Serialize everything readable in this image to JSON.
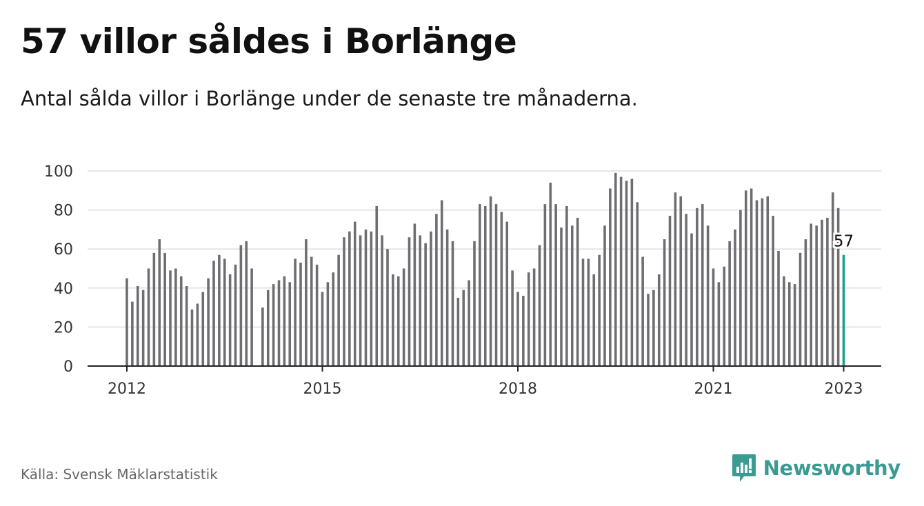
{
  "header": {
    "title": "57 villor såldes i Borlänge",
    "subtitle": "Antal sålda villor i Borlänge under de senaste tre månaderna."
  },
  "footer": {
    "source": "Källa: Svensk Mäklarstatistik",
    "brand": "Newsworthy"
  },
  "colors": {
    "bar": "#6e6e72",
    "highlight": "#1a9e8c",
    "grid": "#dddddd",
    "axis": "#222222",
    "brand": "#3a9b93"
  },
  "chart_data": {
    "type": "bar",
    "x_start": "2012-01",
    "interval": "month",
    "ylim": [
      0,
      100
    ],
    "yticks": [
      0,
      20,
      40,
      60,
      80,
      100
    ],
    "xticks": [
      {
        "label": "2012",
        "index": 0
      },
      {
        "label": "2015",
        "index": 36
      },
      {
        "label": "2018",
        "index": 72
      },
      {
        "label": "2021",
        "index": 108
      },
      {
        "label": "2023",
        "index": 132
      }
    ],
    "values": [
      45,
      33,
      41,
      39,
      50,
      58,
      65,
      58,
      49,
      50,
      46,
      41,
      29,
      32,
      38,
      45,
      54,
      57,
      55,
      47,
      52,
      62,
      64,
      50,
      null,
      30,
      39,
      42,
      44,
      46,
      43,
      55,
      53,
      65,
      56,
      52,
      38,
      43,
      48,
      57,
      66,
      69,
      74,
      67,
      70,
      69,
      82,
      67,
      60,
      47,
      46,
      50,
      66,
      73,
      67,
      63,
      69,
      78,
      85,
      70,
      64,
      35,
      39,
      44,
      64,
      83,
      82,
      87,
      83,
      79,
      74,
      49,
      38,
      36,
      48,
      50,
      62,
      83,
      94,
      83,
      71,
      82,
      72,
      76,
      55,
      55,
      47,
      57,
      72,
      91,
      99,
      97,
      95,
      96,
      84,
      56,
      37,
      39,
      47,
      65,
      77,
      89,
      87,
      78,
      68,
      81,
      83,
      72,
      50,
      43,
      51,
      64,
      70,
      80,
      90,
      91,
      85,
      86,
      87,
      77,
      59,
      46,
      43,
      42,
      58,
      65,
      73,
      72,
      75,
      76,
      89,
      81,
      57
    ],
    "highlight_index": 132,
    "annotation": "57"
  }
}
